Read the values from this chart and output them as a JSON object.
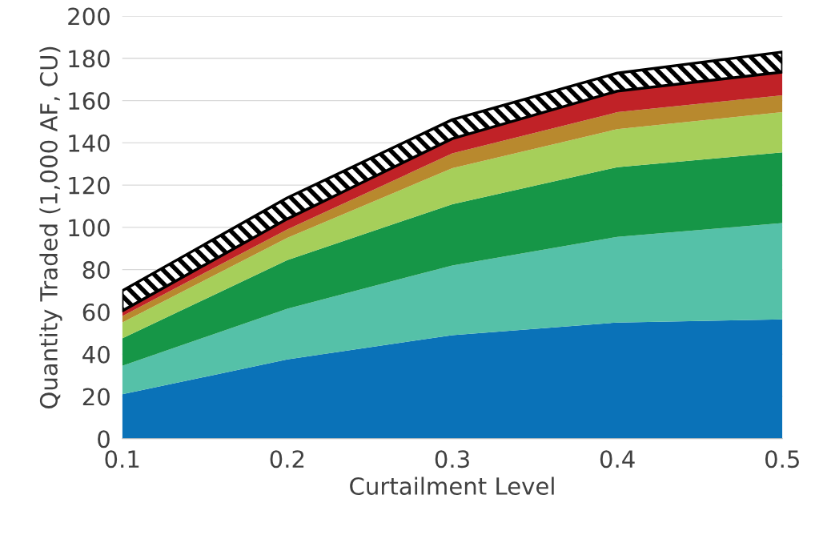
{
  "chart_data": {
    "type": "area",
    "stacked": true,
    "xlabel": "Curtailment Level",
    "ylabel": "Quantity Traded (1,000 AF, CU)",
    "x": [
      0.1,
      0.2,
      0.3,
      0.4,
      0.5
    ],
    "xlim": [
      0.1,
      0.5
    ],
    "xticks": [
      0.1,
      0.2,
      0.3,
      0.4,
      0.5
    ],
    "ylim": [
      0,
      200
    ],
    "yticks": [
      0,
      20,
      40,
      60,
      80,
      100,
      120,
      140,
      160,
      180,
      200
    ],
    "grid": "y",
    "series": [
      {
        "color": "#0a72b8",
        "values": [
          21,
          37.5,
          49,
          55,
          56.5
        ]
      },
      {
        "color": "#55c1a8",
        "values": [
          13.5,
          24,
          33,
          40.5,
          45.5
        ]
      },
      {
        "color": "#169647",
        "values": [
          13,
          23,
          29,
          33,
          33.5
        ]
      },
      {
        "color": "#a6cf5a",
        "values": [
          7.5,
          10.5,
          17,
          18,
          19
        ]
      },
      {
        "color": "#b8892e",
        "values": [
          3,
          4,
          7,
          8,
          8
        ]
      },
      {
        "color": "#c02227",
        "values": [
          2.5,
          5,
          7,
          10,
          11
        ]
      },
      {
        "color": "#000000",
        "values": [
          9.5,
          10,
          9,
          8.5,
          9.5
        ]
      }
    ]
  }
}
